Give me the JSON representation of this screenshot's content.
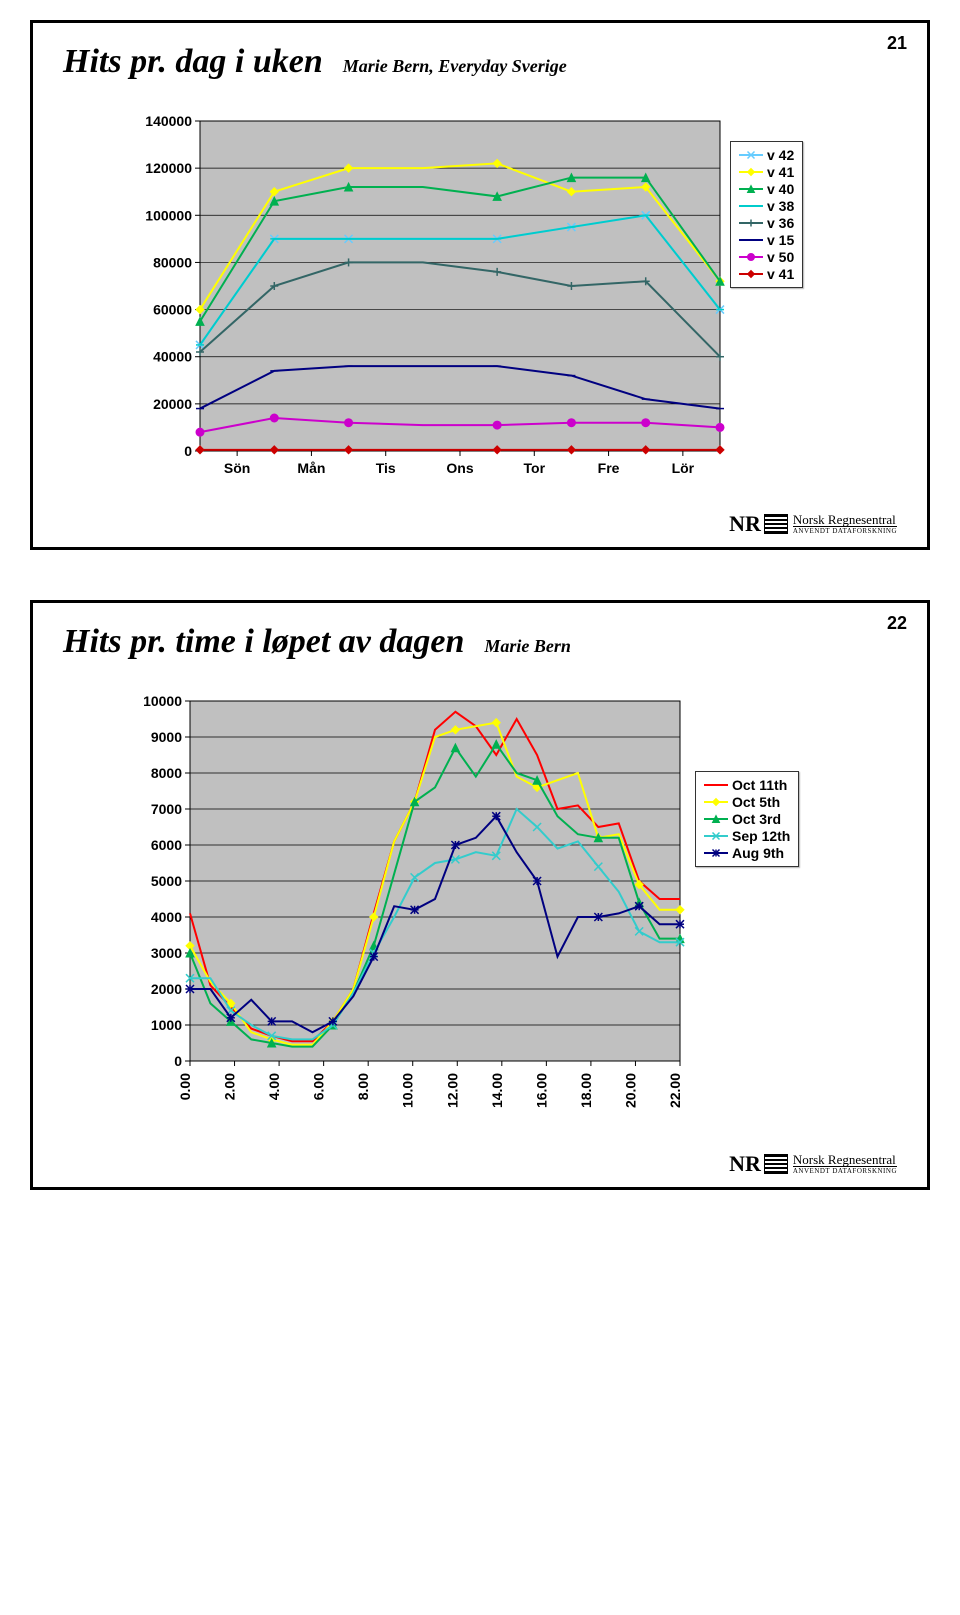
{
  "slide1": {
    "page_number": "21",
    "title": "Hits pr. dag i uken",
    "subtitle": "Marie Bern, Everyday Sverige",
    "chart": {
      "type": "line",
      "ylim": [
        0,
        140000
      ],
      "ytick_step": 20000,
      "categories": [
        "Sön",
        "Mån",
        "Tis",
        "Ons",
        "Tor",
        "Fre",
        "Lör"
      ],
      "background_color": "#c0c0c0",
      "grid_color": "#000000",
      "series": [
        {
          "name": "v 42",
          "color": "#66ccff",
          "marker": "x",
          "values": [
            45000,
            90000,
            90000,
            90000,
            90000,
            95000,
            100000,
            60000
          ]
        },
        {
          "name": "v 41",
          "color": "#ffff00",
          "marker": "diamond",
          "values": [
            60000,
            110000,
            120000,
            120000,
            122000,
            110000,
            112000,
            72000
          ]
        },
        {
          "name": "v 40",
          "color": "#00b050",
          "marker": "triangle",
          "values": [
            55000,
            106000,
            112000,
            112000,
            108000,
            116000,
            116000,
            72000
          ]
        },
        {
          "name": "v 38",
          "color": "#00cccc",
          "marker": "dash",
          "values": [
            45000,
            90000,
            90000,
            90000,
            90000,
            95000,
            100000,
            60000
          ]
        },
        {
          "name": "v 36",
          "color": "#336666",
          "marker": "plus",
          "values": [
            42000,
            70000,
            80000,
            80000,
            76000,
            70000,
            72000,
            40000
          ]
        },
        {
          "name": "v 15",
          "color": "#000080",
          "marker": "dash",
          "values": [
            18000,
            34000,
            36000,
            36000,
            36000,
            32000,
            22000,
            18000
          ]
        },
        {
          "name": "v 50",
          "color": "#cc00cc",
          "marker": "circle",
          "values": [
            8000,
            14000,
            12000,
            11000,
            11000,
            12000,
            12000,
            10000
          ]
        },
        {
          "name": "v 41",
          "color": "#cc0000",
          "marker": "diamond",
          "values": [
            500,
            500,
            500,
            500,
            500,
            500,
            500,
            500
          ]
        }
      ]
    }
  },
  "slide2": {
    "page_number": "22",
    "title": "Hits pr. time i løpet av dagen",
    "subtitle": "Marie Bern",
    "chart": {
      "type": "line",
      "ylim": [
        0,
        10000
      ],
      "ytick_step": 1000,
      "categories": [
        "0.00",
        "2.00",
        "4.00",
        "6.00",
        "8.00",
        "10.00",
        "12.00",
        "14.00",
        "16.00",
        "18.00",
        "20.00",
        "22.00"
      ],
      "background_color": "#c0c0c0",
      "grid_color": "#000000",
      "series": [
        {
          "name": "Oct 11th",
          "color": "#ff0000",
          "marker": "none",
          "values": [
            4100,
            2100,
            1500,
            900,
            700,
            550,
            550,
            1100,
            2000,
            4100,
            6100,
            7200,
            9200,
            9700,
            9300,
            8500,
            9500,
            8500,
            7000,
            7100,
            6500,
            6600,
            5000,
            4500,
            4500
          ]
        },
        {
          "name": "Oct 5th",
          "color": "#ffff00",
          "marker": "diamond",
          "values": [
            3200,
            2200,
            1600,
            800,
            600,
            450,
            450,
            1100,
            2000,
            4000,
            6100,
            7200,
            9000,
            9200,
            9300,
            9400,
            7900,
            7600,
            7800,
            8000,
            6200,
            6300,
            4900,
            4200,
            4200
          ]
        },
        {
          "name": "Oct 3rd",
          "color": "#00b050",
          "marker": "triangle",
          "values": [
            3000,
            1600,
            1100,
            600,
            500,
            400,
            400,
            1000,
            1900,
            3200,
            5200,
            7200,
            7600,
            8700,
            7900,
            8800,
            8000,
            7800,
            6800,
            6300,
            6200,
            6200,
            4400,
            3400,
            3400
          ]
        },
        {
          "name": "Sep 12th",
          "color": "#33cccc",
          "marker": "x",
          "values": [
            2300,
            2300,
            1400,
            1000,
            700,
            600,
            600,
            1000,
            1900,
            3000,
            4000,
            5100,
            5500,
            5600,
            5800,
            5700,
            7000,
            6500,
            5900,
            6100,
            5400,
            4700,
            3600,
            3300,
            3300
          ]
        },
        {
          "name": "Aug 9th",
          "color": "#000080",
          "marker": "star",
          "values": [
            2000,
            2000,
            1200,
            1700,
            1100,
            1100,
            800,
            1100,
            1800,
            2900,
            4300,
            4200,
            4500,
            6000,
            6200,
            6800,
            5800,
            5000,
            2900,
            4000,
            4000,
            4100,
            4300,
            3800,
            3800
          ]
        }
      ]
    }
  },
  "footer": {
    "nr": "NR",
    "line1": "Norsk Regnesentral",
    "line2": "ANVENDT DATAFORSKNING"
  }
}
